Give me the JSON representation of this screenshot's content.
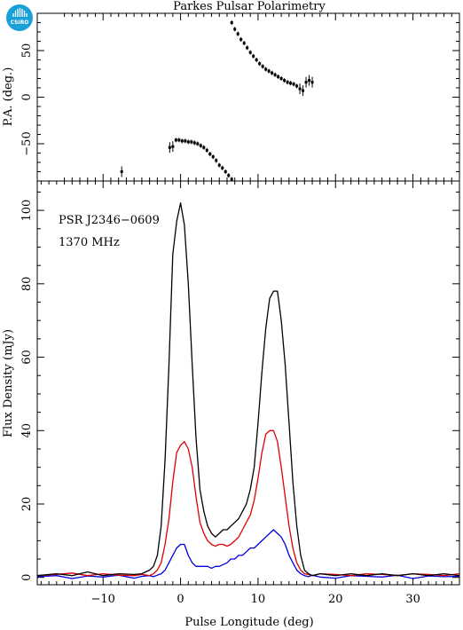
{
  "title": "Parkes Pulsar Polarimetry",
  "logo": {
    "text": "CSIRO",
    "color": "#1aa0d8"
  },
  "colors": {
    "total": "#000000",
    "linear": "#e00000",
    "circular": "#0000e0"
  },
  "chart_data": [
    {
      "type": "scatter",
      "panel": "position-angle",
      "ylabel": "P.A. (deg.)",
      "xlim": [
        -18.5,
        36
      ],
      "ylim": [
        -90,
        90
      ],
      "yticks": [
        -50,
        0,
        50
      ],
      "points": [
        [
          -7.6,
          -80
        ],
        [
          -1.4,
          -54
        ],
        [
          -1.0,
          -53
        ],
        [
          -0.6,
          -46
        ],
        [
          -0.2,
          -46
        ],
        [
          0.2,
          -47
        ],
        [
          0.6,
          -47
        ],
        [
          1.0,
          -48
        ],
        [
          1.4,
          -48
        ],
        [
          1.8,
          -49
        ],
        [
          2.2,
          -50
        ],
        [
          2.6,
          -52
        ],
        [
          3.0,
          -54
        ],
        [
          3.4,
          -57
        ],
        [
          3.8,
          -61
        ],
        [
          4.2,
          -64
        ],
        [
          4.6,
          -68
        ],
        [
          5.0,
          -73
        ],
        [
          5.4,
          -76
        ],
        [
          5.8,
          -80
        ],
        [
          6.2,
          -84
        ],
        [
          6.6,
          -88
        ],
        [
          6.6,
          80
        ],
        [
          7.0,
          73
        ],
        [
          7.4,
          68
        ],
        [
          7.8,
          62
        ],
        [
          8.2,
          58
        ],
        [
          8.6,
          53
        ],
        [
          9.0,
          48
        ],
        [
          9.4,
          44
        ],
        [
          9.8,
          40
        ],
        [
          10.2,
          36
        ],
        [
          10.6,
          33
        ],
        [
          11.0,
          30
        ],
        [
          11.4,
          28
        ],
        [
          11.8,
          26
        ],
        [
          12.2,
          24
        ],
        [
          12.6,
          22
        ],
        [
          13.0,
          20
        ],
        [
          13.4,
          18
        ],
        [
          13.8,
          16
        ],
        [
          14.2,
          15
        ],
        [
          14.6,
          14
        ],
        [
          15.0,
          12
        ],
        [
          15.4,
          9
        ],
        [
          15.8,
          7
        ],
        [
          16.2,
          16
        ],
        [
          16.6,
          18
        ],
        [
          17.0,
          16
        ]
      ]
    },
    {
      "type": "line",
      "panel": "profile",
      "xlabel": "Pulse Longitude (deg)",
      "ylabel": "Flux Density (mJy)",
      "xlim": [
        -18.5,
        36
      ],
      "ylim": [
        -2,
        108
      ],
      "xticks": [
        -10,
        0,
        10,
        20,
        30
      ],
      "yticks": [
        0,
        20,
        40,
        60,
        80,
        100
      ],
      "annotations": [
        "PSR J2346−0609",
        "1370 MHz"
      ],
      "series": [
        {
          "color": "#000000",
          "x": [
            -18.5,
            -16,
            -14,
            -12,
            -10,
            -8,
            -6,
            -5,
            -4,
            -3.5,
            -3,
            -2.5,
            -2,
            -1.5,
            -1,
            -0.5,
            0,
            0.5,
            1,
            1.5,
            2,
            2.5,
            3,
            3.5,
            4,
            4.5,
            5,
            5.5,
            6,
            6.5,
            7,
            7.5,
            8,
            8.5,
            9,
            9.5,
            10,
            10.5,
            11,
            11.5,
            12,
            12.5,
            13,
            13.5,
            14,
            14.5,
            15,
            15.5,
            16,
            16.5,
            17,
            18,
            20,
            22,
            24,
            26,
            28,
            30,
            32,
            34,
            36
          ],
          "values": [
            0.5,
            1,
            0.5,
            1.5,
            0.5,
            1,
            0.8,
            1,
            2,
            3,
            6,
            14,
            32,
            58,
            88,
            97,
            102,
            96,
            80,
            58,
            38,
            24,
            18,
            14,
            12,
            11,
            12,
            13,
            13,
            14,
            15,
            16,
            18,
            20,
            24,
            30,
            42,
            56,
            68,
            76,
            78,
            78,
            70,
            58,
            42,
            26,
            14,
            6,
            2,
            1,
            0.5,
            1,
            0.5,
            1,
            0.5,
            1,
            0.5,
            1,
            0.5,
            1,
            0.5
          ]
        },
        {
          "color": "#e00000",
          "x": [
            -18.5,
            -16,
            -14,
            -12,
            -10,
            -8,
            -6,
            -5,
            -4,
            -3.5,
            -3,
            -2.5,
            -2,
            -1.5,
            -1,
            -0.5,
            0,
            0.5,
            1,
            1.5,
            2,
            2.5,
            3,
            3.5,
            4,
            4.5,
            5,
            5.5,
            6,
            6.5,
            7,
            7.5,
            8,
            8.5,
            9,
            9.5,
            10,
            10.5,
            11,
            11.5,
            12,
            12.5,
            13,
            13.5,
            14,
            14.5,
            15,
            15.5,
            16,
            16.5,
            17,
            18,
            20,
            22,
            24,
            26,
            28,
            30,
            32,
            34,
            36
          ],
          "values": [
            0.5,
            0.8,
            1.2,
            0.5,
            1,
            0.6,
            0.5,
            0.8,
            0.5,
            1,
            2,
            4,
            9,
            16,
            26,
            34,
            36,
            37,
            35,
            30,
            22,
            15,
            12,
            10,
            9,
            8.5,
            9,
            9,
            8.5,
            9,
            10,
            11,
            13,
            15,
            17,
            21,
            27,
            34,
            39,
            40,
            40,
            37,
            30,
            22,
            14,
            8,
            4,
            2,
            1,
            0.8,
            0.5,
            1,
            0.8,
            0.5,
            1,
            0.8,
            0.5,
            1,
            0.8,
            0.5,
            1
          ]
        },
        {
          "color": "#0000e0",
          "x": [
            -18.5,
            -16,
            -14,
            -12,
            -10,
            -8,
            -6,
            -5,
            -4,
            -3.5,
            -3,
            -2.5,
            -2,
            -1.5,
            -1,
            -0.5,
            0,
            0.5,
            1,
            1.5,
            2,
            2.5,
            3,
            3.5,
            4,
            4.5,
            5,
            5.5,
            6,
            6.5,
            7,
            7.5,
            8,
            8.5,
            9,
            9.5,
            10,
            10.5,
            11,
            11.5,
            12,
            12.5,
            13,
            13.5,
            14,
            14.5,
            15,
            15.5,
            16,
            16.5,
            17,
            18,
            20,
            22,
            24,
            26,
            28,
            30,
            32,
            34,
            36
          ],
          "values": [
            0.2,
            0.5,
            -0.3,
            0.4,
            0.1,
            0.6,
            -0.2,
            0.3,
            0.5,
            0.2,
            0.6,
            1,
            2,
            4,
            6,
            8,
            9,
            9,
            6,
            4,
            3,
            3,
            3,
            3,
            2.5,
            3,
            3,
            3.5,
            4,
            5,
            5,
            6,
            6,
            7,
            8,
            8,
            9,
            10,
            11,
            12,
            13,
            12,
            11,
            9,
            6,
            4,
            2,
            1,
            0.5,
            0.2,
            0.6,
            0.1,
            -0.2,
            0.5,
            0.3,
            0.1,
            0.6,
            -0.3,
            0.4,
            0.2,
            0.3
          ]
        }
      ]
    }
  ]
}
